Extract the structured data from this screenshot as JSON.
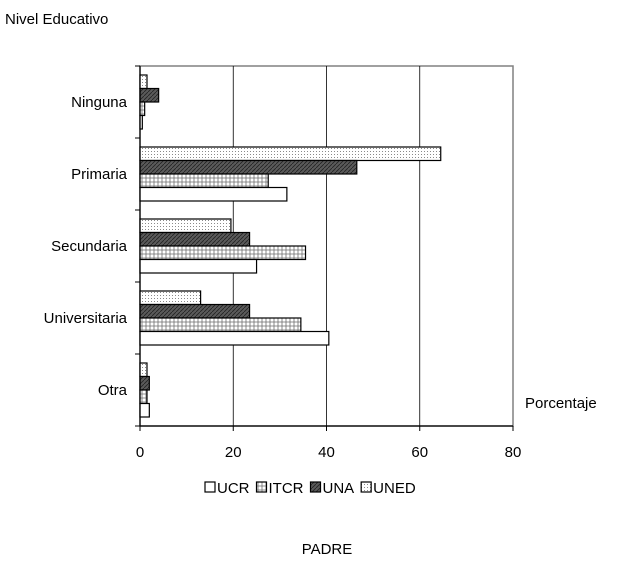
{
  "chart_data": {
    "type": "bar",
    "orientation": "horizontal",
    "title": "PADRE",
    "ylabel": "Nivel Educativo",
    "xlabel": "Porcentaje",
    "categories": [
      "Ninguna",
      "Primaria",
      "Secundaria",
      "Universitaria",
      "Otra"
    ],
    "xlim": [
      0,
      80
    ],
    "xticks": [
      "0",
      "20",
      "40",
      "60",
      "80"
    ],
    "grid": "vertical",
    "legend_position": "bottom",
    "series": [
      {
        "name": "UCR",
        "pattern": "blank",
        "values": [
          0.5,
          31.5,
          25,
          40.5,
          2
        ]
      },
      {
        "name": "ITCR",
        "pattern": "crosshatch",
        "values": [
          1,
          27.5,
          35.5,
          34.5,
          1.5
        ]
      },
      {
        "name": "UNA",
        "pattern": "dense",
        "values": [
          4,
          46.5,
          23.5,
          23.5,
          2
        ]
      },
      {
        "name": "UNED",
        "pattern": "dots",
        "values": [
          1.5,
          64.5,
          19.5,
          13,
          1.5
        ]
      }
    ]
  }
}
